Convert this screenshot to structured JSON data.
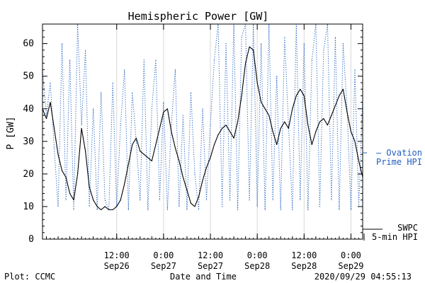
{
  "chart_data": {
    "type": "line",
    "title": "Hemispheric Power [GW]",
    "ylabel": "P [GW]",
    "xlabel": "Date and Time",
    "ylim": [
      0,
      66
    ],
    "yticks": [
      0,
      10,
      20,
      30,
      40,
      50,
      60
    ],
    "xlim": [
      "2020-09-25 17:00",
      "2020-09-29 03:00"
    ],
    "xticks": [
      {
        "time": "2020-09-26 12:00",
        "top": "12:00",
        "bottom": "Sep26"
      },
      {
        "time": "2020-09-27 00:00",
        "top": "0:00",
        "bottom": "Sep27"
      },
      {
        "time": "2020-09-27 12:00",
        "top": "12:00",
        "bottom": "Sep27"
      },
      {
        "time": "2020-09-28 00:00",
        "top": "0:00",
        "bottom": "Sep28"
      },
      {
        "time": "2020-09-28 12:00",
        "top": "12:00",
        "bottom": "Sep28"
      },
      {
        "time": "2020-09-29 00:00",
        "top": "0:00",
        "bottom": "Sep29"
      }
    ],
    "grid": true,
    "legend": [
      {
        "label": "— Ovation",
        "label2": "Prime HPI",
        "color": "#1f5fbf"
      },
      {
        "label": "SWPC",
        "label2": "5-min HPI",
        "color": "#000000"
      }
    ],
    "series": [
      {
        "name": "SWPC 5-min HPI",
        "color": "#000000",
        "style": "solid",
        "x": [
          "2020-09-25 17:00",
          "2020-09-25 18:00",
          "2020-09-25 19:00",
          "2020-09-25 20:00",
          "2020-09-25 21:00",
          "2020-09-25 22:00",
          "2020-09-25 23:00",
          "2020-09-26 00:00",
          "2020-09-26 01:00",
          "2020-09-26 02:00",
          "2020-09-26 03:00",
          "2020-09-26 04:00",
          "2020-09-26 05:00",
          "2020-09-26 06:00",
          "2020-09-26 07:00",
          "2020-09-26 08:00",
          "2020-09-26 09:00",
          "2020-09-26 10:00",
          "2020-09-26 11:00",
          "2020-09-26 12:00",
          "2020-09-26 13:00",
          "2020-09-26 14:00",
          "2020-09-26 15:00",
          "2020-09-26 16:00",
          "2020-09-26 17:00",
          "2020-09-26 18:00",
          "2020-09-26 19:00",
          "2020-09-26 20:00",
          "2020-09-26 21:00",
          "2020-09-26 22:00",
          "2020-09-26 23:00",
          "2020-09-27 00:00",
          "2020-09-27 01:00",
          "2020-09-27 02:00",
          "2020-09-27 03:00",
          "2020-09-27 04:00",
          "2020-09-27 05:00",
          "2020-09-27 06:00",
          "2020-09-27 07:00",
          "2020-09-27 08:00",
          "2020-09-27 09:00",
          "2020-09-27 10:00",
          "2020-09-27 11:00",
          "2020-09-27 12:00",
          "2020-09-27 13:00",
          "2020-09-27 14:00",
          "2020-09-27 15:00",
          "2020-09-27 16:00",
          "2020-09-27 17:00",
          "2020-09-27 18:00",
          "2020-09-27 19:00",
          "2020-09-27 20:00",
          "2020-09-27 21:00",
          "2020-09-27 22:00",
          "2020-09-27 23:00",
          "2020-09-28 00:00",
          "2020-09-28 01:00",
          "2020-09-28 02:00",
          "2020-09-28 03:00",
          "2020-09-28 04:00",
          "2020-09-28 05:00",
          "2020-09-28 06:00",
          "2020-09-28 07:00",
          "2020-09-28 08:00",
          "2020-09-28 09:00",
          "2020-09-28 10:00",
          "2020-09-28 11:00",
          "2020-09-28 12:00",
          "2020-09-28 13:00",
          "2020-09-28 14:00",
          "2020-09-28 15:00",
          "2020-09-28 16:00",
          "2020-09-28 17:00",
          "2020-09-28 18:00",
          "2020-09-28 19:00",
          "2020-09-28 20:00",
          "2020-09-28 21:00",
          "2020-09-28 22:00",
          "2020-09-28 23:00",
          "2020-09-29 00:00",
          "2020-09-29 01:00",
          "2020-09-29 02:00",
          "2020-09-29 03:00"
        ],
        "values": [
          40,
          37,
          42,
          34,
          26,
          21,
          19,
          14,
          12,
          20,
          34,
          27,
          16,
          12,
          10,
          9,
          10,
          9,
          9,
          10,
          12,
          17,
          23,
          29,
          31,
          27,
          26,
          25,
          24,
          29,
          34,
          39,
          40,
          33,
          28,
          24,
          19,
          15,
          11,
          10,
          13,
          18,
          22,
          25,
          29,
          32,
          34,
          35,
          33,
          31,
          36,
          44,
          54,
          59,
          58,
          48,
          42,
          40,
          38,
          33,
          29,
          34,
          36,
          34,
          40,
          44,
          46,
          44,
          35,
          29,
          33,
          36,
          37,
          35,
          38,
          41,
          44,
          46,
          39,
          33,
          30,
          24,
          19
        ]
      },
      {
        "name": "Ovation Prime HPI",
        "color": "#1f5fbf",
        "style": "dotted",
        "x": [
          "2020-09-25 17:00",
          "2020-09-25 18:00",
          "2020-09-25 19:00",
          "2020-09-25 20:00",
          "2020-09-25 21:00",
          "2020-09-25 22:00",
          "2020-09-25 23:00",
          "2020-09-26 00:00",
          "2020-09-26 01:00",
          "2020-09-26 02:00",
          "2020-09-26 03:00",
          "2020-09-26 04:00",
          "2020-09-26 05:00",
          "2020-09-26 06:00",
          "2020-09-26 07:00",
          "2020-09-26 08:00",
          "2020-09-26 09:00",
          "2020-09-26 10:00",
          "2020-09-26 11:00",
          "2020-09-26 12:00",
          "2020-09-26 13:00",
          "2020-09-26 14:00",
          "2020-09-26 15:00",
          "2020-09-26 16:00",
          "2020-09-26 17:00",
          "2020-09-26 18:00",
          "2020-09-26 19:00",
          "2020-09-26 20:00",
          "2020-09-26 21:00",
          "2020-09-26 22:00",
          "2020-09-26 23:00",
          "2020-09-27 00:00",
          "2020-09-27 01:00",
          "2020-09-27 02:00",
          "2020-09-27 03:00",
          "2020-09-27 04:00",
          "2020-09-27 05:00",
          "2020-09-27 06:00",
          "2020-09-27 07:00",
          "2020-09-27 08:00",
          "2020-09-27 09:00",
          "2020-09-27 10:00",
          "2020-09-27 11:00",
          "2020-09-27 12:00",
          "2020-09-27 13:00",
          "2020-09-27 14:00",
          "2020-09-27 15:00",
          "2020-09-27 16:00",
          "2020-09-27 17:00",
          "2020-09-27 18:00",
          "2020-09-27 19:00",
          "2020-09-27 20:00",
          "2020-09-27 21:00",
          "2020-09-27 22:00",
          "2020-09-27 23:00",
          "2020-09-28 00:00",
          "2020-09-28 01:00",
          "2020-09-28 02:00",
          "2020-09-28 03:00",
          "2020-09-28 04:00",
          "2020-09-28 05:00",
          "2020-09-28 06:00",
          "2020-09-28 07:00",
          "2020-09-28 08:00",
          "2020-09-28 09:00",
          "2020-09-28 10:00",
          "2020-09-28 11:00",
          "2020-09-28 12:00",
          "2020-09-28 13:00",
          "2020-09-28 14:00",
          "2020-09-28 15:00",
          "2020-09-28 16:00",
          "2020-09-28 17:00",
          "2020-09-28 18:00",
          "2020-09-28 19:00",
          "2020-09-28 20:00",
          "2020-09-28 21:00",
          "2020-09-28 22:00",
          "2020-09-28 23:00",
          "2020-09-29 00:00",
          "2020-09-29 01:00",
          "2020-09-29 02:00",
          "2020-09-29 03:00"
        ],
        "values": [
          52,
          38,
          48,
          28,
          10,
          60,
          12,
          55,
          9,
          66,
          35,
          58,
          10,
          40,
          9,
          45,
          12,
          9,
          48,
          10,
          35,
          52,
          9,
          45,
          30,
          12,
          55,
          9,
          40,
          55,
          12,
          42,
          9,
          35,
          52,
          10,
          38,
          9,
          45,
          20,
          9,
          40,
          12,
          35,
          55,
          66,
          10,
          60,
          12,
          66,
          9,
          62,
          66,
          12,
          66,
          10,
          60,
          9,
          66,
          12,
          50,
          9,
          62,
          35,
          9,
          66,
          12,
          60,
          9,
          55,
          66,
          10,
          58,
          66,
          12,
          62,
          9,
          60,
          40,
          9,
          52,
          10,
          44
        ]
      }
    ]
  },
  "footer": {
    "left": "Plot: CCMC",
    "center": "Date and Time",
    "right": "2020/09/29 04:55:13"
  }
}
